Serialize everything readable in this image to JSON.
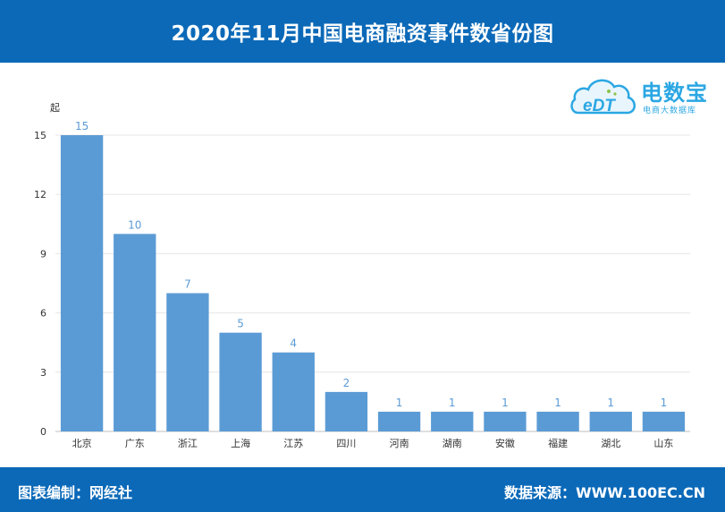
{
  "header": {
    "title": "2020年11月中国电商融资事件数省份图"
  },
  "footer": {
    "left_text": "图表编制：网经社",
    "right_text": "数据来源：WWW.100EC.CN"
  },
  "logo": {
    "name": "电数宝",
    "subtitle": "电商大数据库",
    "mark_text": "eDT"
  },
  "colors": {
    "header": "#0b69b8",
    "bar": "#5b9bd5",
    "label": "#5b9bd5",
    "logo": "#2ba7e3"
  },
  "chart_data": {
    "type": "bar",
    "ylabel": "起",
    "ylim": [
      0,
      15
    ],
    "yticks": [
      0,
      3,
      6,
      9,
      12,
      15
    ],
    "grid": true,
    "categories": [
      "北京",
      "广东",
      "浙江",
      "上海",
      "江苏",
      "四川",
      "河南",
      "湖南",
      "安徽",
      "福建",
      "湖北",
      "山东"
    ],
    "values": [
      15,
      10,
      7,
      5,
      4,
      2,
      1,
      1,
      1,
      1,
      1,
      1
    ]
  }
}
